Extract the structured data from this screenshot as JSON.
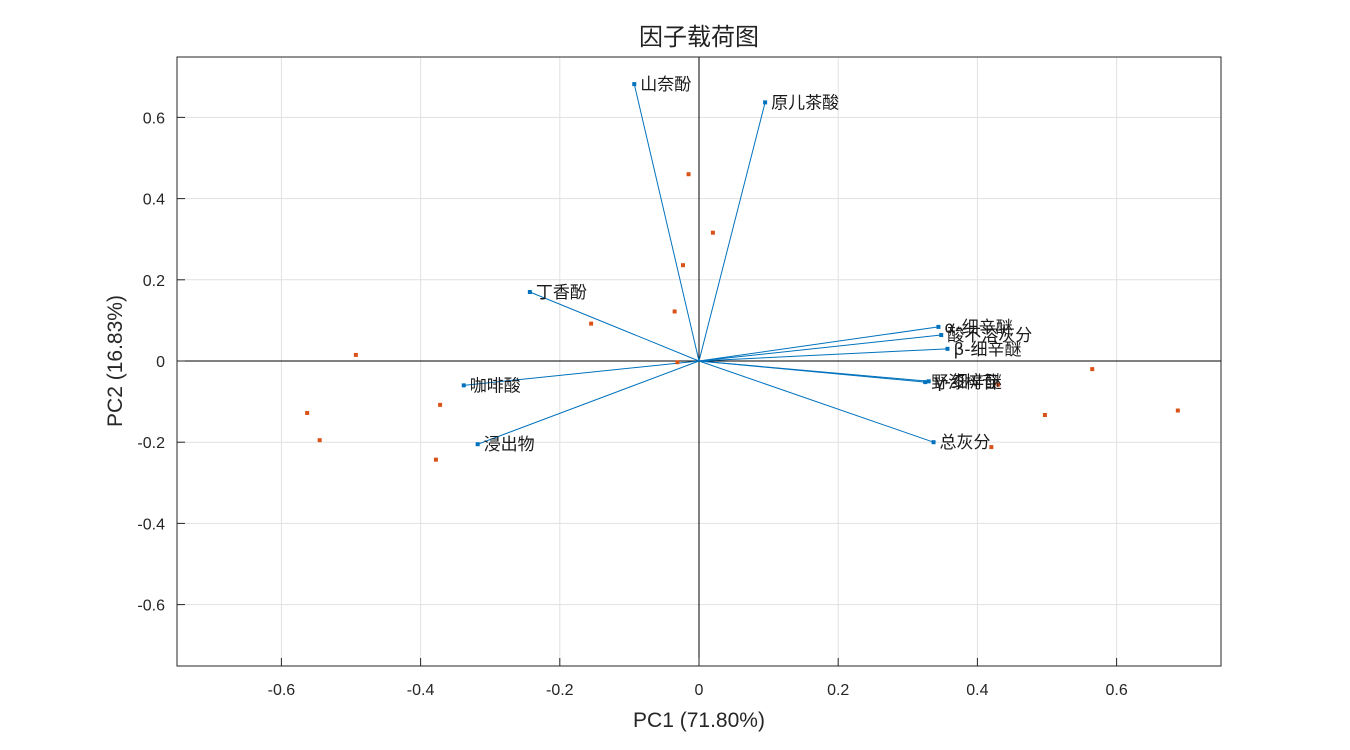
{
  "colors": {
    "loading": "#0072bd",
    "score": "#d95319"
  },
  "chart_data": {
    "type": "scatter",
    "title": "因子载荷图",
    "xlabel": "PC1 (71.80%)",
    "ylabel": "PC2 (16.83%)",
    "xlim": [
      -0.75,
      0.75
    ],
    "ylim": [
      -0.75,
      0.75
    ],
    "xticks": [
      "-0.6",
      "-0.4",
      "-0.2",
      "0",
      "0.2",
      "0.4",
      "0.6"
    ],
    "yticks": [
      "-0.6",
      "-0.4",
      "-0.2",
      "0",
      "0.2",
      "0.4",
      "0.6"
    ],
    "grid": true,
    "loadings": [
      {
        "name": "山奈酚",
        "x": -0.093,
        "y": 0.682
      },
      {
        "name": "原儿茶酸",
        "x": 0.095,
        "y": 0.637
      },
      {
        "name": "丁香酚",
        "x": -0.243,
        "y": 0.17
      },
      {
        "name": "α-细辛醚",
        "x": 0.344,
        "y": 0.084
      },
      {
        "name": "酸不溶灰分",
        "x": 0.348,
        "y": 0.064
      },
      {
        "name": "β-细辛醚",
        "x": 0.357,
        "y": 0.03
      },
      {
        "name": "野漆树苷",
        "x": 0.325,
        "y": -0.052
      },
      {
        "name": "γ-细辛醚",
        "x": 0.33,
        "y": -0.05
      },
      {
        "name": "咖啡酸",
        "x": -0.338,
        "y": -0.06
      },
      {
        "name": "浸出物",
        "x": -0.318,
        "y": -0.205
      },
      {
        "name": "总灰分",
        "x": 0.337,
        "y": -0.2
      }
    ],
    "scores": [
      {
        "x": -0.015,
        "y": 0.46
      },
      {
        "x": 0.02,
        "y": 0.316
      },
      {
        "x": -0.023,
        "y": 0.236
      },
      {
        "x": -0.035,
        "y": 0.122
      },
      {
        "x": -0.155,
        "y": 0.092
      },
      {
        "x": -0.493,
        "y": 0.015
      },
      {
        "x": -0.031,
        "y": -0.003
      },
      {
        "x": -0.563,
        "y": -0.128
      },
      {
        "x": -0.372,
        "y": -0.108
      },
      {
        "x": -0.545,
        "y": -0.195
      },
      {
        "x": -0.378,
        "y": -0.243
      },
      {
        "x": 0.565,
        "y": -0.02
      },
      {
        "x": 0.688,
        "y": -0.122
      },
      {
        "x": 0.497,
        "y": -0.133
      },
      {
        "x": 0.43,
        "y": -0.058
      },
      {
        "x": 0.42,
        "y": -0.212
      }
    ]
  }
}
